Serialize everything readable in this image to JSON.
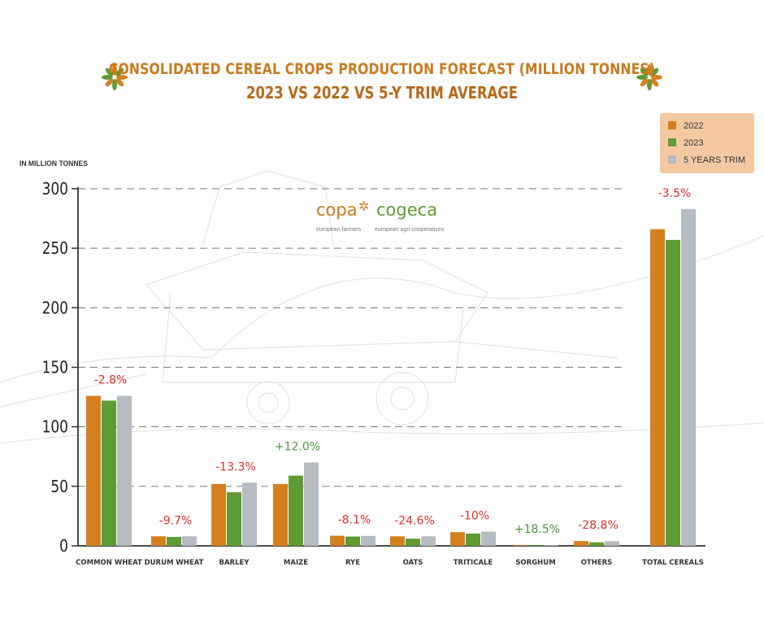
{
  "title": "CONSOLIDATED CEREAL CROPS PRODUCTION FORECAST (MILLION TONNES)",
  "subtitle": "2023 VS 2022 VS 5-Y TRIM AVERAGE",
  "unit_label": "IN MILLION TONNES",
  "logo": {
    "left": "copa",
    "right": "cogeca",
    "left_caption": "european farmers",
    "right_caption": "european agri-cooperatives"
  },
  "colors": {
    "2022": "#d5801f",
    "2023": "#5f9a35",
    "trim": "#b6bcc2",
    "title": "#c97a1f",
    "negative": "#d9302b",
    "positive": "#4a9a3a"
  },
  "chart_data": {
    "type": "bar",
    "title": "CONSOLIDATED CEREAL CROPS PRODUCTION FORECAST (MILLION TONNES)",
    "subtitle": "2023 VS 2022 VS 5-Y TRIM AVERAGE",
    "ylabel": "IN MILLION TONNES",
    "xlabel": "",
    "ylim": [
      0,
      300
    ],
    "yticks": [
      0,
      50,
      100,
      150,
      200,
      250,
      300
    ],
    "grid": true,
    "legend_position": "top-right",
    "categories": [
      "COMMON WHEAT",
      "DURUM WHEAT",
      "BARLEY",
      "MAIZE",
      "RYE",
      "OATS",
      "TRITICALE",
      "SORGHUM",
      "OTHERS",
      "TOTAL CEREALS"
    ],
    "series": [
      {
        "name": "2022",
        "color": "#d5801f",
        "values": [
          126,
          8,
          52,
          52,
          8.5,
          8,
          11.5,
          0.6,
          4,
          266
        ]
      },
      {
        "name": "2023",
        "color": "#5f9a35",
        "values": [
          122,
          7.5,
          45,
          59,
          7.8,
          6,
          10.3,
          0.7,
          3,
          257
        ]
      },
      {
        "name": "5 YEARS TRIM",
        "color": "#b6bcc2",
        "values": [
          126,
          8,
          53,
          70,
          8.3,
          8,
          12,
          0.6,
          4,
          283
        ]
      }
    ],
    "annotations": [
      "-2.8%",
      "-9.7%",
      "-13.3%",
      "+12.0%",
      "-8.1%",
      "-24.6%",
      "-10%",
      "+18.5%",
      "-28.8%",
      "-3.5%"
    ],
    "annotation_colors": [
      "#d9302b",
      "#d9302b",
      "#d9302b",
      "#4a9a3a",
      "#d9302b",
      "#d9302b",
      "#d9302b",
      "#4a9a3a",
      "#d9302b",
      "#d9302b"
    ]
  }
}
